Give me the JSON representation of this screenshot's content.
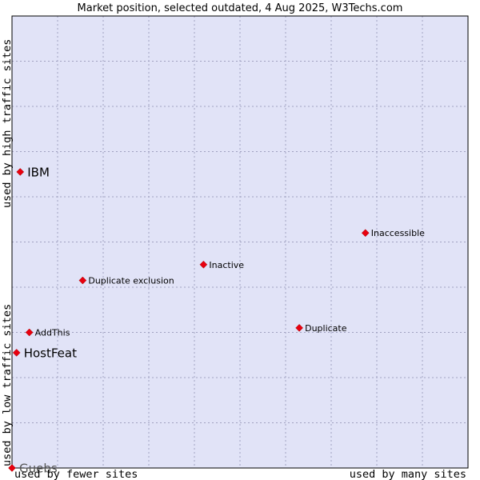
{
  "chart_data": {
    "type": "scatter",
    "title": "Market position, selected outdated, 4 Aug 2025, W3Techs.com",
    "xlabel_left": "used by fewer sites",
    "xlabel_right": "used by many sites",
    "ylabel_bottom": "used by low traffic sites",
    "ylabel_top": "used by high traffic sites",
    "xlim": [
      0,
      100
    ],
    "ylim": [
      0,
      100
    ],
    "grid": true,
    "colors": {
      "plot_bg": "#e1e3f7",
      "grid": "#a0a0c0",
      "marker": "#e8000f",
      "border": "#000000"
    },
    "points": [
      {
        "label": "IBM",
        "x": 1.8,
        "y": 65.5,
        "size": "large"
      },
      {
        "label": "Inaccessible",
        "x": 77.5,
        "y": 52.0,
        "size": "small"
      },
      {
        "label": "Inactive",
        "x": 42.0,
        "y": 45.0,
        "size": "small"
      },
      {
        "label": "Duplicate exclusion",
        "x": 15.5,
        "y": 41.5,
        "size": "small"
      },
      {
        "label": "AddThis",
        "x": 3.8,
        "y": 30.0,
        "size": "small"
      },
      {
        "label": "Duplicate",
        "x": 63.0,
        "y": 31.0,
        "size": "small"
      },
      {
        "label": "HostFeat",
        "x": 1.0,
        "y": 25.5,
        "size": "large"
      },
      {
        "label": "Guebs",
        "x": 0.0,
        "y": 0.0,
        "size": "large",
        "faded": true
      }
    ]
  }
}
